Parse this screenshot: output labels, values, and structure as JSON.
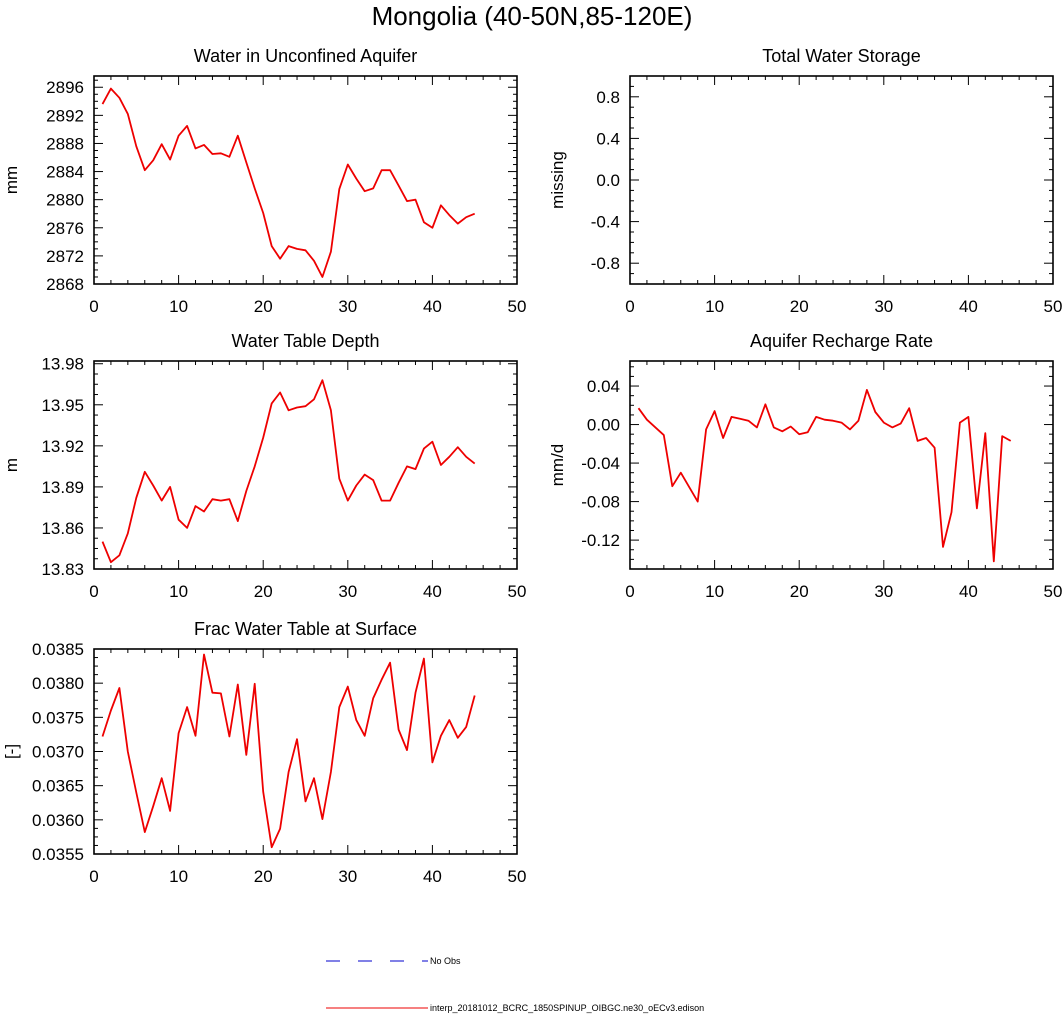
{
  "page": {
    "title": "Mongolia (40-50N,85-120E)"
  },
  "legend": {
    "obs_label": "No Obs",
    "model_label": "interp_20181012_BCRC_1850SPINUP_OIBGC.ne30_oECv3.edison",
    "obs_color": "#0000cc",
    "model_color": "#ee0000"
  },
  "chart_data": [
    {
      "type": "line",
      "title": "Water in Unconfined Aquifer",
      "ylabel": "mm",
      "xlim": [
        0,
        50
      ],
      "ylim": [
        2868,
        2897.6
      ],
      "xticks": [
        0,
        10,
        20,
        30,
        40,
        50
      ],
      "yticks": [
        2868,
        2872,
        2876,
        2880,
        2884,
        2888,
        2892,
        2896
      ],
      "ytick_labels": [
        "2868",
        "2872",
        "2876",
        "2880",
        "2884",
        "2888",
        "2892",
        "2896"
      ],
      "series": [
        {
          "values": [
            [
              1,
              2893.6
            ],
            [
              2,
              2895.8
            ],
            [
              3,
              2894.5
            ],
            [
              4,
              2892.2
            ],
            [
              5,
              2887.6
            ],
            [
              6,
              2884.2
            ],
            [
              7,
              2885.6
            ],
            [
              8,
              2887.9
            ],
            [
              9,
              2885.7
            ],
            [
              10,
              2889.1
            ],
            [
              11,
              2890.5
            ],
            [
              12,
              2887.3
            ],
            [
              13,
              2887.8
            ],
            [
              14,
              2886.5
            ],
            [
              15,
              2886.6
            ],
            [
              16,
              2886.1
            ],
            [
              17,
              2889.1
            ],
            [
              18,
              2885.3
            ],
            [
              19,
              2881.6
            ],
            [
              20,
              2878.1
            ],
            [
              21,
              2873.4
            ],
            [
              22,
              2871.6
            ],
            [
              23,
              2873.4
            ],
            [
              24,
              2873.0
            ],
            [
              25,
              2872.8
            ],
            [
              26,
              2871.3
            ],
            [
              27,
              2869.0
            ],
            [
              28,
              2872.6
            ],
            [
              29,
              2881.5
            ],
            [
              30,
              2885.0
            ],
            [
              31,
              2883.0
            ],
            [
              32,
              2881.2
            ],
            [
              33,
              2881.6
            ],
            [
              34,
              2884.2
            ],
            [
              35,
              2884.2
            ],
            [
              36,
              2882.0
            ],
            [
              37,
              2879.8
            ],
            [
              38,
              2880.0
            ],
            [
              39,
              2876.8
            ],
            [
              40,
              2876.0
            ],
            [
              41,
              2879.2
            ],
            [
              42,
              2877.8
            ],
            [
              43,
              2876.6
            ],
            [
              44,
              2877.5
            ],
            [
              45,
              2878.0
            ]
          ]
        }
      ]
    },
    {
      "type": "line",
      "title": "Total Water Storage",
      "ylabel": "missing",
      "xlim": [
        0,
        50
      ],
      "ylim": [
        -1,
        1
      ],
      "xticks": [
        0,
        10,
        20,
        30,
        40,
        50
      ],
      "yticks": [
        -0.8,
        -0.4,
        0.0,
        0.4,
        0.8
      ],
      "ytick_labels": [
        "-0.8",
        "-0.4",
        "0.0",
        "0.4",
        "0.8"
      ],
      "series": []
    },
    {
      "type": "line",
      "title": "Water Table Depth",
      "ylabel": "m",
      "xlim": [
        0,
        50
      ],
      "ylim": [
        13.83,
        13.982
      ],
      "xticks": [
        0,
        10,
        20,
        30,
        40,
        50
      ],
      "yticks": [
        13.83,
        13.86,
        13.89,
        13.92,
        13.95,
        13.98
      ],
      "ytick_labels": [
        "13.83",
        "13.86",
        "13.89",
        "13.92",
        "13.95",
        "13.98"
      ],
      "series": [
        {
          "values": [
            [
              1,
              13.85
            ],
            [
              2,
              13.835
            ],
            [
              3,
              13.84
            ],
            [
              4,
              13.856
            ],
            [
              5,
              13.882
            ],
            [
              6,
              13.901
            ],
            [
              7,
              13.891
            ],
            [
              8,
              13.88
            ],
            [
              9,
              13.89
            ],
            [
              10,
              13.866
            ],
            [
              11,
              13.86
            ],
            [
              12,
              13.876
            ],
            [
              13,
              13.872
            ],
            [
              14,
              13.881
            ],
            [
              15,
              13.88
            ],
            [
              16,
              13.881
            ],
            [
              17,
              13.865
            ],
            [
              18,
              13.887
            ],
            [
              19,
              13.905
            ],
            [
              20,
              13.926
            ],
            [
              21,
              13.951
            ],
            [
              22,
              13.959
            ],
            [
              23,
              13.946
            ],
            [
              24,
              13.948
            ],
            [
              25,
              13.949
            ],
            [
              26,
              13.954
            ],
            [
              27,
              13.968
            ],
            [
              28,
              13.946
            ],
            [
              29,
              13.896
            ],
            [
              30,
              13.88
            ],
            [
              31,
              13.891
            ],
            [
              32,
              13.899
            ],
            [
              33,
              13.895
            ],
            [
              34,
              13.88
            ],
            [
              35,
              13.88
            ],
            [
              36,
              13.893
            ],
            [
              37,
              13.905
            ],
            [
              38,
              13.903
            ],
            [
              39,
              13.918
            ],
            [
              40,
              13.923
            ],
            [
              41,
              13.906
            ],
            [
              42,
              13.912
            ],
            [
              43,
              13.919
            ],
            [
              44,
              13.912
            ],
            [
              45,
              13.907
            ]
          ]
        }
      ]
    },
    {
      "type": "line",
      "title": "Aquifer Recharge Rate",
      "ylabel": "mm/d",
      "xlim": [
        0,
        50
      ],
      "ylim": [
        -0.15,
        0.066
      ],
      "xticks": [
        0,
        10,
        20,
        30,
        40,
        50
      ],
      "yticks": [
        -0.12,
        -0.08,
        -0.04,
        0.0,
        0.04
      ],
      "ytick_labels": [
        "-0.12",
        "-0.08",
        "-0.04",
        "0.00",
        "0.04"
      ],
      "series": [
        {
          "values": [
            [
              1,
              0.017
            ],
            [
              2,
              0.005
            ],
            [
              3,
              -0.003
            ],
            [
              4,
              -0.011
            ],
            [
              5,
              -0.064
            ],
            [
              6,
              -0.05
            ],
            [
              7,
              -0.065
            ],
            [
              8,
              -0.08
            ],
            [
              9,
              -0.005
            ],
            [
              10,
              0.014
            ],
            [
              11,
              -0.014
            ],
            [
              12,
              0.008
            ],
            [
              13,
              0.006
            ],
            [
              14,
              0.004
            ],
            [
              15,
              -0.003
            ],
            [
              16,
              0.021
            ],
            [
              17,
              -0.003
            ],
            [
              18,
              -0.007
            ],
            [
              19,
              -0.002
            ],
            [
              20,
              -0.01
            ],
            [
              21,
              -0.008
            ],
            [
              22,
              0.008
            ],
            [
              23,
              0.005
            ],
            [
              24,
              0.004
            ],
            [
              25,
              0.002
            ],
            [
              26,
              -0.005
            ],
            [
              27,
              0.004
            ],
            [
              28,
              0.036
            ],
            [
              29,
              0.013
            ],
            [
              30,
              0.002
            ],
            [
              31,
              -0.003
            ],
            [
              32,
              0.001
            ],
            [
              33,
              0.017
            ],
            [
              34,
              -0.017
            ],
            [
              35,
              -0.014
            ],
            [
              36,
              -0.024
            ],
            [
              37,
              -0.127
            ],
            [
              38,
              -0.091
            ],
            [
              39,
              0.002
            ],
            [
              40,
              0.008
            ],
            [
              41,
              -0.087
            ],
            [
              42,
              -0.009
            ],
            [
              43,
              -0.142
            ],
            [
              44,
              -0.012
            ],
            [
              45,
              -0.017
            ]
          ]
        }
      ]
    },
    {
      "type": "line",
      "title": "Frac Water Table at Surface",
      "ylabel": "[-]",
      "xlim": [
        0,
        50
      ],
      "ylim": [
        0.0355,
        0.0385
      ],
      "xticks": [
        0,
        10,
        20,
        30,
        40,
        50
      ],
      "yticks": [
        0.0355,
        0.036,
        0.0365,
        0.037,
        0.0375,
        0.038,
        0.0385
      ],
      "ytick_labels": [
        "0.0355",
        "0.0360",
        "0.0365",
        "0.0370",
        "0.0375",
        "0.0380",
        "0.0385"
      ],
      "series": [
        {
          "values": [
            [
              1,
              0.03722
            ],
            [
              2,
              0.0376
            ],
            [
              3,
              0.03793
            ],
            [
              4,
              0.037
            ],
            [
              5,
              0.0364
            ],
            [
              6,
              0.03582
            ],
            [
              7,
              0.0362
            ],
            [
              8,
              0.03661
            ],
            [
              9,
              0.03613
            ],
            [
              10,
              0.03727
            ],
            [
              11,
              0.03765
            ],
            [
              12,
              0.03723
            ],
            [
              13,
              0.03842
            ],
            [
              14,
              0.03786
            ],
            [
              15,
              0.03785
            ],
            [
              16,
              0.03722
            ],
            [
              17,
              0.03798
            ],
            [
              18,
              0.03695
            ],
            [
              19,
              0.03799
            ],
            [
              20,
              0.03641
            ],
            [
              21,
              0.0356
            ],
            [
              22,
              0.03587
            ],
            [
              23,
              0.0367
            ],
            [
              24,
              0.03718
            ],
            [
              25,
              0.03627
            ],
            [
              26,
              0.03661
            ],
            [
              27,
              0.03601
            ],
            [
              28,
              0.0367
            ],
            [
              29,
              0.03765
            ],
            [
              30,
              0.03795
            ],
            [
              31,
              0.03746
            ],
            [
              32,
              0.03723
            ],
            [
              33,
              0.03778
            ],
            [
              34,
              0.03805
            ],
            [
              35,
              0.0383
            ],
            [
              36,
              0.03732
            ],
            [
              37,
              0.03702
            ],
            [
              38,
              0.03786
            ],
            [
              39,
              0.03836
            ],
            [
              40,
              0.03684
            ],
            [
              41,
              0.03723
            ],
            [
              42,
              0.03746
            ],
            [
              43,
              0.0372
            ],
            [
              44,
              0.03736
            ],
            [
              45,
              0.03782
            ]
          ]
        }
      ]
    }
  ]
}
